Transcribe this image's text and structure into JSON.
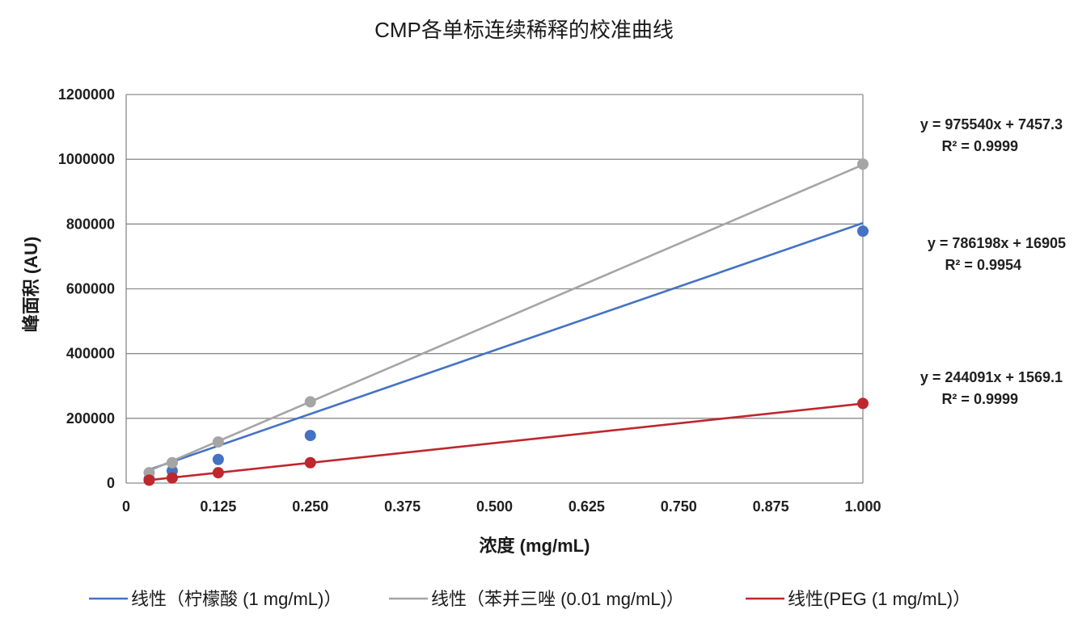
{
  "chart_data": {
    "type": "scatter",
    "title": "CMP各单标连续稀释的校准曲线",
    "xlabel": "浓度 (mg/mL)",
    "ylabel": "峰面积 (AU)",
    "xlim": [
      0,
      1.0
    ],
    "ylim": [
      0,
      1200000
    ],
    "x_ticks": [
      0,
      0.125,
      0.25,
      0.375,
      0.5,
      0.625,
      0.75,
      0.875,
      1.0
    ],
    "x_tick_labels": [
      "0",
      "0.125",
      "0.250",
      "0.375",
      "0.500",
      "0.625",
      "0.750",
      "0.875",
      "1.000"
    ],
    "y_ticks": [
      0,
      200000,
      400000,
      600000,
      800000,
      1000000,
      1200000
    ],
    "y_tick_labels": [
      "0",
      "200000",
      "400000",
      "600000",
      "800000",
      "1000000",
      "1200000"
    ],
    "grid": "horizontal",
    "legend_position": "bottom",
    "series": [
      {
        "name": "线性（柠檬酸 (1 mg/mL)）",
        "color": "#4472c4",
        "x": [
          0.03125,
          0.0625,
          0.125,
          0.25,
          1.0
        ],
        "y": [
          12000,
          38000,
          73000,
          147000,
          778000
        ],
        "fit_slope": 786198,
        "fit_intercept": 16905,
        "equation": "y = 786198x + 16905",
        "r2": "R² = 0.9954"
      },
      {
        "name": "线性（苯并三唑 (0.01 mg/mL)）",
        "color": "#a5a5a5",
        "x": [
          0.03125,
          0.0625,
          0.125,
          0.25,
          1.0
        ],
        "y": [
          32000,
          63000,
          127000,
          251000,
          985000
        ],
        "fit_slope": 975540,
        "fit_intercept": 7457.3,
        "equation": "y = 975540x + 7457.3",
        "r2": "R² = 0.9999"
      },
      {
        "name": "线性(PEG (1 mg/mL)）",
        "color": "#c0262d",
        "x": [
          0.03125,
          0.0625,
          0.125,
          0.25,
          1.0
        ],
        "y": [
          9000,
          16000,
          32000,
          63000,
          246000
        ],
        "fit_slope": 244091,
        "fit_intercept": 1569.1,
        "equation": "y = 244091x + 1569.1",
        "r2": "R² = 0.9999"
      }
    ]
  }
}
